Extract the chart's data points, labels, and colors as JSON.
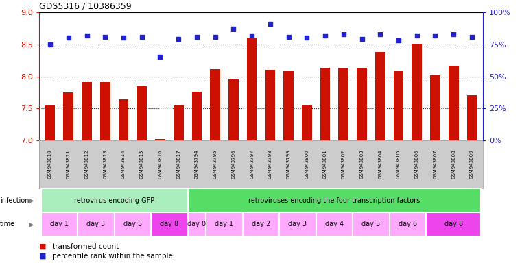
{
  "title": "GDS5316 / 10386359",
  "samples": [
    "GSM943810",
    "GSM943811",
    "GSM943812",
    "GSM943813",
    "GSM943814",
    "GSM943815",
    "GSM943816",
    "GSM943817",
    "GSM943794",
    "GSM943795",
    "GSM943796",
    "GSM943797",
    "GSM943798",
    "GSM943799",
    "GSM943800",
    "GSM943801",
    "GSM943802",
    "GSM943803",
    "GSM943804",
    "GSM943805",
    "GSM943806",
    "GSM943807",
    "GSM943808",
    "GSM943809"
  ],
  "red_values": [
    7.55,
    7.75,
    7.92,
    7.92,
    7.64,
    7.85,
    7.02,
    7.55,
    7.76,
    8.11,
    7.95,
    8.6,
    8.1,
    8.08,
    7.56,
    8.13,
    8.13,
    8.13,
    8.38,
    8.08,
    8.51,
    8.02,
    8.17,
    7.71
  ],
  "blue_values_pct": [
    75,
    80,
    82,
    81,
    80,
    81,
    65,
    79,
    81,
    81,
    87,
    82,
    91,
    81,
    80,
    82,
    83,
    79,
    83,
    78,
    82,
    82,
    83,
    81
  ],
  "ylim_left": [
    7.0,
    9.0
  ],
  "ylim_right": [
    0,
    100
  ],
  "yticks_left": [
    7.0,
    7.5,
    8.0,
    8.5,
    9.0
  ],
  "yticks_right": [
    0,
    25,
    50,
    75,
    100
  ],
  "ytick_labels_right": [
    "0%",
    "25%",
    "50%",
    "75%",
    "100%"
  ],
  "infection_groups": [
    {
      "label": "retrovirus encoding GFP",
      "start": 0,
      "end": 8,
      "color": "#aaeebb"
    },
    {
      "label": "retroviruses encoding the four transcription factors",
      "start": 8,
      "end": 24,
      "color": "#55dd66"
    }
  ],
  "time_groups": [
    {
      "label": "day 1",
      "start": 0,
      "end": 2,
      "color": "#ffaaff"
    },
    {
      "label": "day 3",
      "start": 2,
      "end": 4,
      "color": "#ffaaff"
    },
    {
      "label": "day 5",
      "start": 4,
      "end": 6,
      "color": "#ffaaff"
    },
    {
      "label": "day 8",
      "start": 6,
      "end": 8,
      "color": "#ee44ee"
    },
    {
      "label": "day 0",
      "start": 8,
      "end": 9,
      "color": "#ffaaff"
    },
    {
      "label": "day 1",
      "start": 9,
      "end": 11,
      "color": "#ffaaff"
    },
    {
      "label": "day 2",
      "start": 11,
      "end": 13,
      "color": "#ffaaff"
    },
    {
      "label": "day 3",
      "start": 13,
      "end": 15,
      "color": "#ffaaff"
    },
    {
      "label": "day 4",
      "start": 15,
      "end": 17,
      "color": "#ffaaff"
    },
    {
      "label": "day 5",
      "start": 17,
      "end": 19,
      "color": "#ffaaff"
    },
    {
      "label": "day 6",
      "start": 19,
      "end": 21,
      "color": "#ffaaff"
    },
    {
      "label": "day 8",
      "start": 21,
      "end": 24,
      "color": "#ee44ee"
    }
  ],
  "red_color": "#cc1100",
  "blue_color": "#2222cc",
  "bar_width": 0.55,
  "dotted_color": "#333333",
  "background_color": "#ffffff",
  "left_axis_color": "#cc1100",
  "right_axis_color": "#2222cc",
  "sample_bg": "#cccccc"
}
